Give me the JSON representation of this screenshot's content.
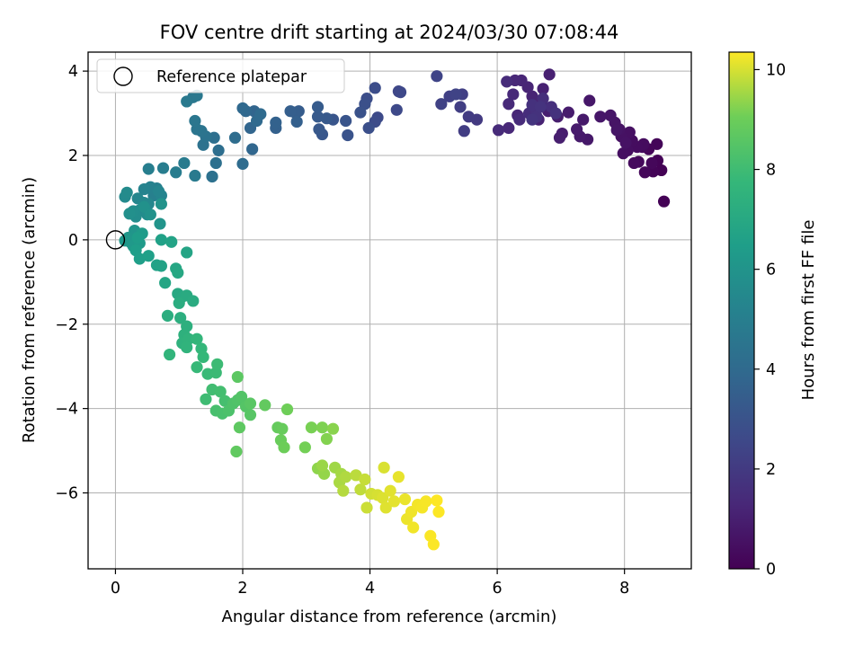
{
  "chart_data": {
    "type": "scatter",
    "title": "FOV centre drift starting at 2024/03/30 07:08:44",
    "xlabel": "Angular distance from reference (arcmin)",
    "ylabel": "Rotation from reference (arcmin)",
    "xlim": [
      -0.43,
      9.05
    ],
    "ylim": [
      -7.8,
      4.45
    ],
    "xticks": [
      0,
      2,
      4,
      6,
      8
    ],
    "yticks": [
      -6,
      -4,
      -2,
      0,
      2,
      4
    ],
    "grid": true,
    "legend": {
      "position": "top-left",
      "entries": [
        "Reference platepar"
      ]
    },
    "reference_point": {
      "x": 0,
      "y": 0
    },
    "colorbar": {
      "label": "Hours from first FF file",
      "colormap": "viridis",
      "range": [
        0,
        10.35
      ],
      "ticks": [
        0,
        2,
        4,
        6,
        8,
        10
      ]
    },
    "series": [
      {
        "color_by": "hours",
        "points": [
          [
            8.62,
            0.91,
            0.02
          ],
          [
            8.58,
            1.65,
            0.05
          ],
          [
            8.52,
            1.88,
            0.08
          ],
          [
            8.45,
            1.62,
            0.11
          ],
          [
            8.51,
            2.27,
            0.14
          ],
          [
            8.38,
            2.15,
            0.17
          ],
          [
            8.43,
            1.82,
            0.2
          ],
          [
            8.32,
            1.6,
            0.23
          ],
          [
            8.22,
            1.85,
            0.26
          ],
          [
            8.28,
            2.2,
            0.29
          ],
          [
            8.15,
            1.82,
            0.32
          ],
          [
            8.3,
            2.27,
            0.35
          ],
          [
            8.2,
            2.2,
            0.38
          ],
          [
            8.12,
            2.35,
            0.41
          ],
          [
            8.05,
            2.12,
            0.44
          ],
          [
            7.98,
            2.05,
            0.47
          ],
          [
            8.08,
            2.55,
            0.5
          ],
          [
            7.95,
            2.45,
            0.53
          ],
          [
            8.02,
            2.3,
            0.56
          ],
          [
            7.92,
            2.62,
            0.59
          ],
          [
            7.85,
            2.78,
            0.62
          ],
          [
            7.88,
            2.6,
            0.65
          ],
          [
            7.78,
            2.95,
            0.68
          ],
          [
            7.62,
            2.92,
            0.71
          ],
          [
            7.45,
            3.3,
            0.74
          ],
          [
            7.42,
            2.38,
            0.77
          ],
          [
            7.35,
            2.85,
            0.8
          ],
          [
            7.3,
            2.45,
            0.83
          ],
          [
            7.25,
            2.62,
            0.86
          ],
          [
            7.12,
            3.02,
            0.89
          ],
          [
            7.02,
            2.52,
            0.92
          ],
          [
            6.95,
            2.92,
            0.95
          ],
          [
            6.98,
            2.42,
            0.98
          ],
          [
            6.8,
            3.05,
            1.01
          ],
          [
            6.82,
            3.92,
            1.04
          ],
          [
            6.72,
            3.58,
            1.07
          ],
          [
            6.65,
            2.85,
            1.1
          ],
          [
            6.7,
            3.25,
            1.13
          ],
          [
            6.55,
            3.4,
            1.16
          ],
          [
            6.48,
            3.62,
            1.19
          ],
          [
            6.38,
            3.78,
            1.22
          ],
          [
            6.32,
            2.95,
            1.25
          ],
          [
            6.28,
            3.78,
            1.28
          ],
          [
            6.18,
            2.65,
            1.31
          ],
          [
            6.25,
            3.45,
            1.34
          ],
          [
            6.18,
            3.22,
            1.37
          ],
          [
            6.02,
            2.6,
            1.4
          ],
          [
            6.35,
            2.85,
            1.43
          ],
          [
            6.15,
            3.75,
            1.46
          ],
          [
            6.5,
            3.0,
            1.49
          ],
          [
            6.6,
            3.05,
            1.52
          ],
          [
            6.72,
            3.35,
            1.55
          ],
          [
            6.85,
            3.15,
            1.58
          ],
          [
            6.6,
            3.1,
            1.61
          ],
          [
            6.55,
            3.2,
            1.64
          ],
          [
            6.62,
            2.92,
            1.67
          ],
          [
            6.92,
            3.0,
            1.7
          ],
          [
            6.68,
            3.15,
            1.73
          ],
          [
            6.55,
            2.85,
            1.76
          ],
          [
            5.68,
            2.85,
            2.0
          ],
          [
            5.55,
            2.92,
            2.05
          ],
          [
            5.48,
            2.58,
            2.1
          ],
          [
            5.42,
            3.15,
            2.15
          ],
          [
            5.45,
            3.45,
            2.2
          ],
          [
            5.25,
            3.4,
            2.25
          ],
          [
            5.12,
            3.22,
            2.3
          ],
          [
            5.35,
            3.45,
            2.35
          ],
          [
            5.05,
            3.88,
            2.4
          ],
          [
            4.45,
            3.52,
            2.5
          ],
          [
            4.48,
            3.5,
            2.55
          ],
          [
            4.42,
            3.08,
            2.6
          ],
          [
            4.12,
            2.9,
            2.65
          ],
          [
            4.08,
            2.8,
            2.7
          ],
          [
            4.08,
            3.6,
            2.75
          ],
          [
            3.95,
            3.35,
            2.8
          ],
          [
            3.98,
            2.65,
            2.85
          ],
          [
            3.92,
            3.22,
            2.9
          ],
          [
            3.85,
            3.02,
            2.95
          ],
          [
            3.65,
            2.48,
            3.0
          ],
          [
            3.62,
            2.82,
            3.05
          ],
          [
            3.42,
            2.85,
            3.1
          ],
          [
            3.25,
            2.5,
            3.15
          ],
          [
            3.2,
            2.62,
            3.2
          ],
          [
            3.32,
            2.88,
            3.25
          ],
          [
            3.18,
            2.92,
            3.3
          ],
          [
            3.18,
            3.15,
            3.35
          ],
          [
            2.88,
            3.05,
            3.4
          ],
          [
            2.82,
            3.02,
            3.45
          ],
          [
            2.75,
            3.05,
            3.5
          ],
          [
            2.85,
            2.8,
            3.55
          ],
          [
            2.52,
            2.65,
            3.6
          ],
          [
            2.52,
            2.78,
            3.65
          ],
          [
            2.25,
            2.95,
            3.7
          ],
          [
            2.18,
            3.05,
            3.75
          ],
          [
            2.12,
            2.65,
            3.8
          ],
          [
            2.15,
            2.15,
            3.85
          ],
          [
            2.05,
            3.05,
            3.9
          ],
          [
            2.0,
            3.12,
            3.95
          ],
          [
            2.22,
            2.82,
            4.0
          ],
          [
            2.28,
            2.98,
            4.05
          ],
          [
            2.0,
            1.8,
            4.1
          ],
          [
            1.88,
            2.42,
            4.15
          ],
          [
            1.62,
            2.12,
            4.2
          ],
          [
            1.55,
            2.42,
            4.25
          ],
          [
            1.58,
            1.82,
            4.3
          ],
          [
            1.52,
            1.5,
            4.35
          ],
          [
            1.38,
            2.25,
            4.4
          ],
          [
            1.42,
            2.45,
            4.45
          ],
          [
            1.35,
            2.58,
            4.5
          ],
          [
            1.28,
            2.62,
            4.55
          ],
          [
            1.25,
            2.82,
            4.6
          ],
          [
            1.22,
            3.38,
            4.65
          ],
          [
            1.28,
            3.42,
            4.7
          ],
          [
            1.12,
            3.28,
            4.75
          ],
          [
            1.25,
            1.52,
            4.8
          ],
          [
            1.08,
            1.82,
            4.85
          ],
          [
            0.95,
            1.6,
            4.9
          ],
          [
            0.75,
            1.7,
            4.95
          ],
          [
            0.52,
            1.68,
            5.0
          ],
          [
            0.65,
            1.22,
            5.05
          ],
          [
            0.6,
            1.05,
            5.1
          ],
          [
            0.55,
            1.25,
            5.15
          ],
          [
            0.45,
            1.2,
            5.2
          ],
          [
            0.72,
            1.05,
            5.25
          ],
          [
            0.68,
            1.15,
            5.3
          ],
          [
            0.35,
            0.98,
            5.35
          ],
          [
            0.52,
            0.85,
            5.4
          ],
          [
            0.45,
            0.88,
            5.45
          ],
          [
            0.38,
            0.7,
            5.5
          ],
          [
            0.15,
            1.02,
            5.55
          ],
          [
            0.18,
            1.12,
            5.6
          ],
          [
            0.5,
            0.6,
            5.65
          ],
          [
            0.32,
            0.55,
            5.7
          ],
          [
            0.28,
            0.68,
            5.75
          ],
          [
            0.22,
            0.62,
            5.8
          ],
          [
            0.45,
            0.78,
            5.85
          ],
          [
            0.55,
            0.6,
            5.9
          ],
          [
            0.72,
            0.85,
            5.95
          ],
          [
            0.7,
            0.38,
            6.0
          ],
          [
            0.3,
            0.22,
            6.05
          ],
          [
            0.2,
            0.05,
            6.1
          ],
          [
            0.25,
            -0.08,
            6.15
          ],
          [
            0.15,
            -0.02,
            6.2
          ],
          [
            0.28,
            -0.15,
            6.25
          ],
          [
            0.38,
            -0.08,
            6.3
          ],
          [
            0.42,
            0.15,
            6.35
          ],
          [
            0.35,
            0.05,
            6.4
          ],
          [
            0.32,
            -0.25,
            6.45
          ],
          [
            0.38,
            -0.45,
            6.5
          ],
          [
            0.52,
            -0.38,
            6.55
          ],
          [
            0.72,
            0.0,
            6.6
          ],
          [
            0.65,
            -0.6,
            6.65
          ],
          [
            0.72,
            -0.62,
            6.7
          ],
          [
            0.88,
            -0.05,
            6.75
          ],
          [
            1.12,
            -0.3,
            6.8
          ],
          [
            0.78,
            -1.02,
            6.85
          ],
          [
            0.95,
            -0.68,
            6.9
          ],
          [
            0.98,
            -0.78,
            6.95
          ],
          [
            0.98,
            -1.28,
            7.0
          ],
          [
            1.05,
            -1.35,
            7.05
          ],
          [
            1.12,
            -1.32,
            7.1
          ],
          [
            1.22,
            -1.45,
            7.15
          ],
          [
            1.0,
            -1.5,
            7.2
          ],
          [
            0.82,
            -1.8,
            7.25
          ],
          [
            1.02,
            -1.85,
            7.3
          ],
          [
            1.12,
            -2.05,
            7.35
          ],
          [
            1.08,
            -2.25,
            7.4
          ],
          [
            1.05,
            -2.45,
            7.45
          ],
          [
            1.15,
            -2.35,
            7.5
          ],
          [
            1.12,
            -2.55,
            7.55
          ],
          [
            0.85,
            -2.72,
            7.6
          ],
          [
            1.28,
            -2.35,
            7.65
          ],
          [
            1.35,
            -2.58,
            7.7
          ],
          [
            1.38,
            -2.78,
            7.75
          ],
          [
            1.28,
            -3.02,
            7.8
          ],
          [
            1.45,
            -3.18,
            7.85
          ],
          [
            1.58,
            -3.15,
            7.9
          ],
          [
            1.6,
            -2.95,
            7.95
          ],
          [
            1.42,
            -3.78,
            8.0
          ],
          [
            1.52,
            -3.55,
            8.05
          ],
          [
            1.65,
            -3.6,
            8.1
          ],
          [
            1.72,
            -3.82,
            8.15
          ],
          [
            1.58,
            -4.05,
            8.2
          ],
          [
            1.68,
            -4.12,
            8.25
          ],
          [
            1.78,
            -4.05,
            8.3
          ],
          [
            1.85,
            -3.88,
            8.35
          ],
          [
            1.92,
            -3.8,
            8.4
          ],
          [
            1.98,
            -3.72,
            8.45
          ],
          [
            2.05,
            -3.95,
            8.5
          ],
          [
            2.12,
            -4.15,
            8.55
          ],
          [
            2.12,
            -3.88,
            8.6
          ],
          [
            1.92,
            -3.25,
            8.65
          ],
          [
            1.95,
            -4.45,
            8.7
          ],
          [
            1.9,
            -5.02,
            8.75
          ],
          [
            2.35,
            -3.92,
            8.8
          ],
          [
            2.55,
            -4.45,
            8.85
          ],
          [
            2.62,
            -4.48,
            8.9
          ],
          [
            2.6,
            -4.75,
            8.95
          ],
          [
            2.65,
            -4.92,
            9.0
          ],
          [
            2.7,
            -4.02,
            9.05
          ],
          [
            2.98,
            -4.92,
            9.1
          ],
          [
            3.08,
            -4.45,
            9.15
          ],
          [
            3.25,
            -4.45,
            9.2
          ],
          [
            3.32,
            -4.72,
            9.25
          ],
          [
            3.42,
            -4.48,
            9.3
          ],
          [
            3.18,
            -5.42,
            9.35
          ],
          [
            3.28,
            -5.55,
            9.4
          ],
          [
            3.25,
            -5.35,
            9.45
          ],
          [
            3.45,
            -5.4,
            9.5
          ],
          [
            3.55,
            -5.55,
            9.55
          ],
          [
            3.52,
            -5.75,
            9.6
          ],
          [
            3.62,
            -5.62,
            9.65
          ],
          [
            3.58,
            -5.95,
            9.7
          ],
          [
            3.78,
            -5.58,
            9.75
          ],
          [
            3.85,
            -5.92,
            9.8
          ],
          [
            3.92,
            -5.68,
            9.85
          ],
          [
            3.95,
            -6.35,
            9.9
          ],
          [
            4.02,
            -6.02,
            9.95
          ],
          [
            4.12,
            -6.05,
            10.0
          ],
          [
            4.22,
            -5.4,
            10.02
          ],
          [
            4.2,
            -6.12,
            10.05
          ],
          [
            4.25,
            -6.35,
            10.08
          ],
          [
            4.32,
            -5.95,
            10.1
          ],
          [
            4.38,
            -6.2,
            10.12
          ],
          [
            4.45,
            -5.62,
            10.15
          ],
          [
            4.55,
            -6.15,
            10.18
          ],
          [
            4.58,
            -6.62,
            10.2
          ],
          [
            4.65,
            -6.45,
            10.22
          ],
          [
            4.68,
            -6.82,
            10.24
          ],
          [
            4.75,
            -6.28,
            10.26
          ],
          [
            4.82,
            -6.35,
            10.28
          ],
          [
            4.88,
            -6.2,
            10.3
          ],
          [
            4.95,
            -7.02,
            10.32
          ],
          [
            5.0,
            -7.22,
            10.33
          ],
          [
            5.08,
            -6.45,
            10.34
          ],
          [
            5.05,
            -6.18,
            10.35
          ]
        ]
      }
    ]
  }
}
